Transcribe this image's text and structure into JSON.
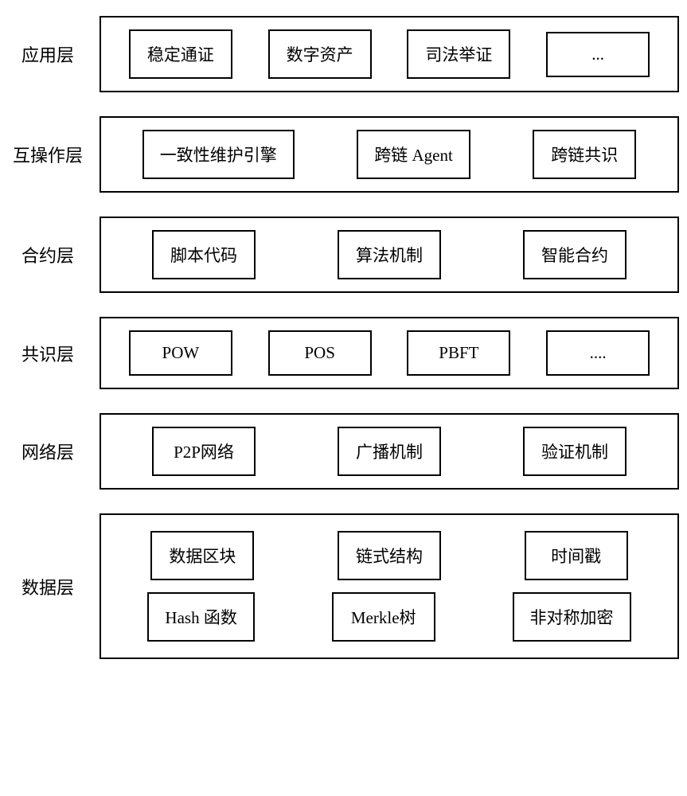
{
  "diagram": {
    "type": "layered-architecture",
    "background_color": "#ffffff",
    "border_color": "#000000",
    "text_color": "#000000",
    "label_fontsize": 22,
    "item_fontsize": 21,
    "font_family": "SimSun",
    "border_width": 2,
    "layers": [
      {
        "label": "应用层",
        "items": [
          "稳定通证",
          "数字资产",
          "司法举证",
          "..."
        ]
      },
      {
        "label": "互操作层",
        "items": [
          "一致性维护引擎",
          "跨链 Agent",
          "跨链共识"
        ]
      },
      {
        "label": "合约层",
        "items": [
          "脚本代码",
          "算法机制",
          "智能合约"
        ]
      },
      {
        "label": "共识层",
        "items": [
          "POW",
          "POS",
          "PBFT",
          "...."
        ]
      },
      {
        "label": "网络层",
        "items": [
          "P2P网络",
          "广播机制",
          "验证机制"
        ]
      },
      {
        "label": "数据层",
        "rows": [
          [
            "数据区块",
            "链式结构",
            "时间戳"
          ],
          [
            "Hash 函数",
            "Merkle树",
            "非对称加密"
          ]
        ]
      }
    ]
  }
}
